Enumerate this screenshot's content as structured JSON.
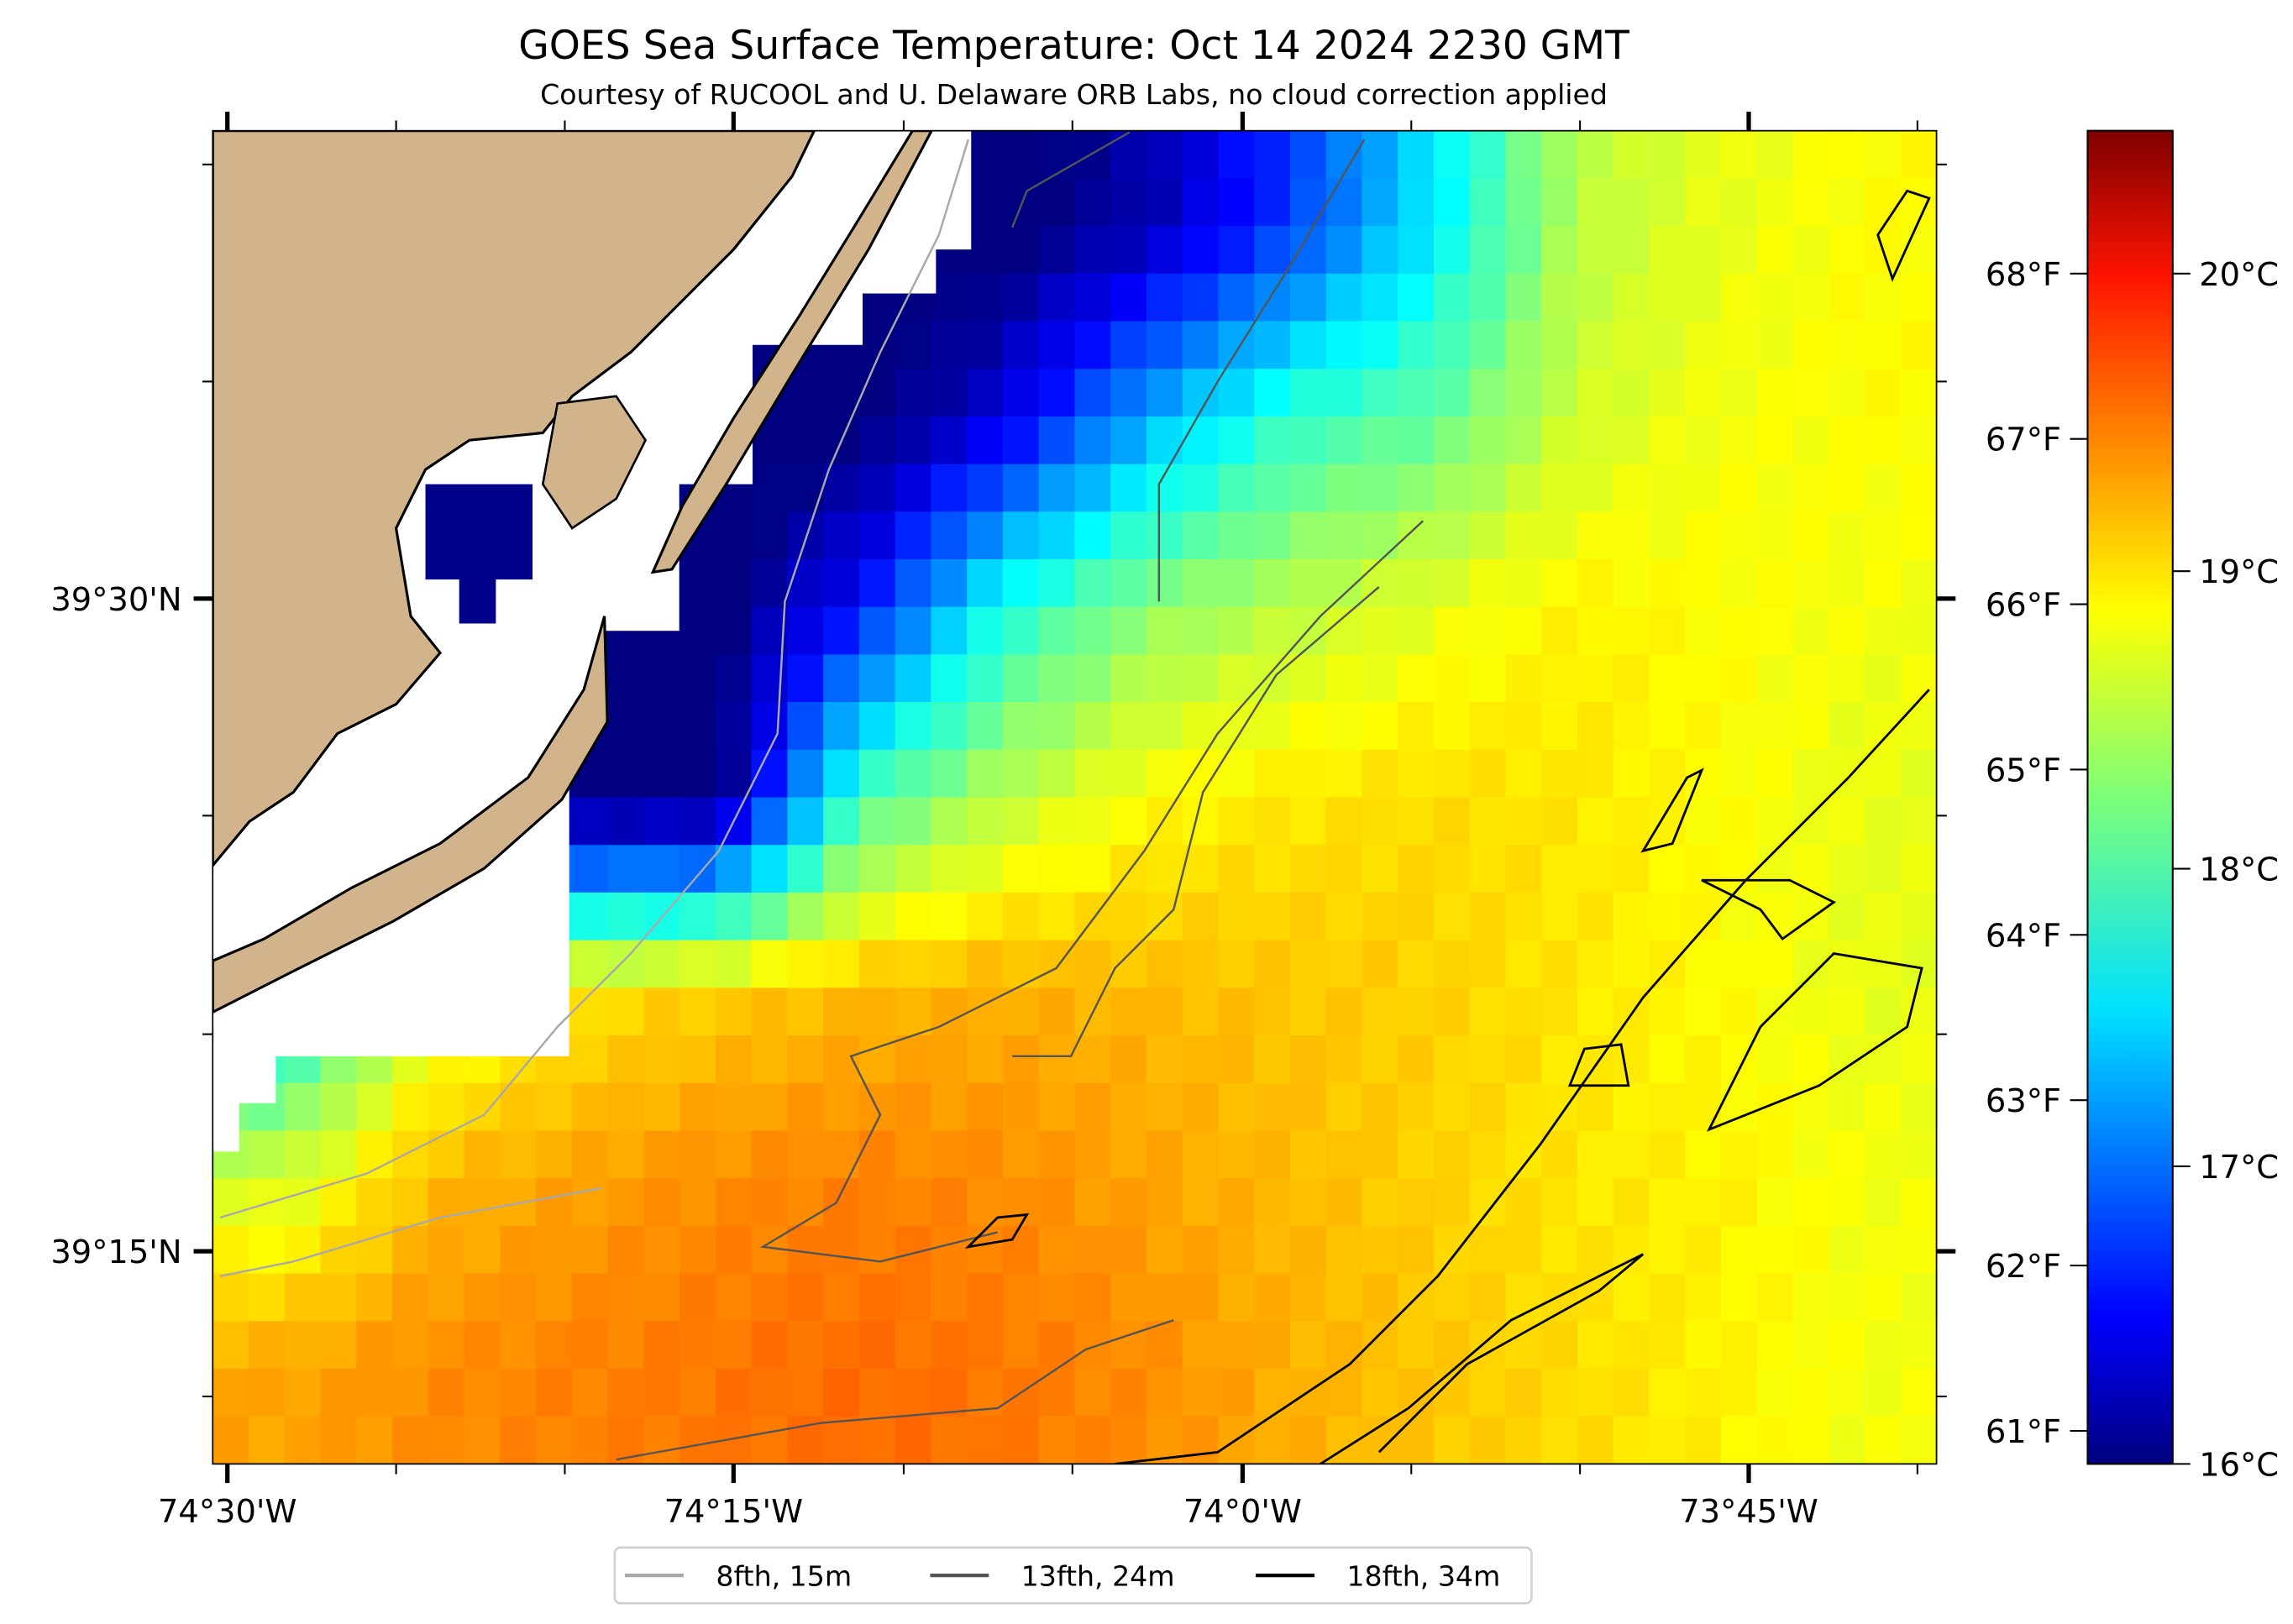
{
  "title": "GOES Sea Surface Temperature: Oct 14 2024 2230 GMT",
  "subtitle": "Courtesy of RUCOOL and U. Delaware ORB Labs, no cloud correction applied",
  "axes": {
    "lon_labels": [
      "74°30'W",
      "74°15'W",
      "74°0'W",
      "73°45'W"
    ],
    "lat_labels": [
      "39°30'N",
      "39°15'N"
    ]
  },
  "colorbar": {
    "fahrenheit_labels": [
      "68°F",
      "67°F",
      "66°F",
      "65°F",
      "64°F",
      "63°F",
      "62°F",
      "61°F"
    ],
    "celsius_labels": [
      "20°C",
      "19°C",
      "18°C",
      "17°C",
      "16°C"
    ],
    "colormap": "jet",
    "range_c": [
      16,
      20.48
    ]
  },
  "legend": [
    {
      "label": "8fth, 15m",
      "color": "#a9a9a9"
    },
    {
      "label": "13fth, 24m",
      "color": "#555555"
    },
    {
      "label": "18fth, 34m",
      "color": "#000000"
    }
  ],
  "colors": {
    "land": "#d2b48c",
    "no_data": "#ffffff"
  },
  "chart_data": {
    "type": "heatmap",
    "title": "GOES Sea Surface Temperature: Oct 14 2024 2230 GMT",
    "units": "°C",
    "lon_range": [
      "74°30'W",
      "73°40'W"
    ],
    "lat_range": [
      "39°10'N",
      "39°40'N"
    ],
    "coarse_grid_rows_north_to_south": [
      [
        15.9,
        15.9,
        15.9,
        15.9,
        15.9,
        15.9,
        16.2,
        16.8,
        17.6,
        18.5,
        18.7,
        18.8
      ],
      [
        15.9,
        15.9,
        15.9,
        15.9,
        15.9,
        16.4,
        17.3,
        17.9,
        18.1,
        18.6,
        18.75,
        18.8
      ],
      [
        15.9,
        15.9,
        15.9,
        15.9,
        16.6,
        17.8,
        18.3,
        18.5,
        18.7,
        18.85,
        18.8,
        18.75
      ],
      [
        15.9,
        15.9,
        15.9,
        15.9,
        18.0,
        18.5,
        18.8,
        18.9,
        18.95,
        18.9,
        18.8,
        18.7
      ],
      [
        17.6,
        18.6,
        18.9,
        19.0,
        19.1,
        19.15,
        19.1,
        19.05,
        19.0,
        18.9,
        18.8,
        18.7
      ],
      [
        18.6,
        19.1,
        19.2,
        19.3,
        19.35,
        19.3,
        19.2,
        19.1,
        19.0,
        18.9,
        18.85,
        18.75
      ],
      [
        19.2,
        19.3,
        19.35,
        19.4,
        19.45,
        19.4,
        19.3,
        19.15,
        19.05,
        18.95,
        18.85,
        18.75
      ]
    ]
  }
}
